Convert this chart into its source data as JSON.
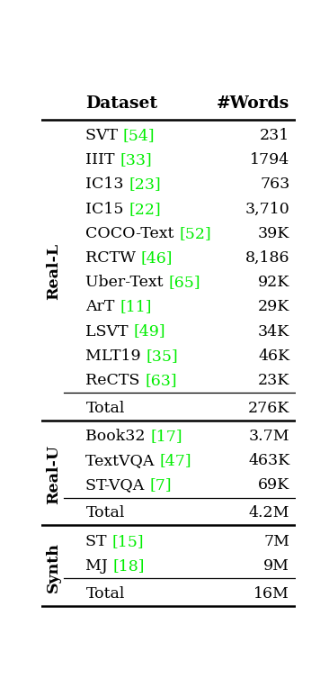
{
  "title_col1": "Dataset",
  "title_col2": "#Words",
  "sections": [
    {
      "label": "Real-L",
      "rows": [
        {
          "name": "SVT",
          "ref": "54",
          "value": "231"
        },
        {
          "name": "IIIT",
          "ref": "33",
          "value": "1794"
        },
        {
          "name": "IC13",
          "ref": "23",
          "value": "763"
        },
        {
          "name": "IC15",
          "ref": "22",
          "value": "3,710"
        },
        {
          "name": "COCO-Text",
          "ref": "52",
          "value": "39K"
        },
        {
          "name": "RCTW",
          "ref": "46",
          "value": "8,186"
        },
        {
          "name": "Uber-Text",
          "ref": "65",
          "value": "92K"
        },
        {
          "name": "ArT",
          "ref": "11",
          "value": "29K"
        },
        {
          "name": "LSVT",
          "ref": "49",
          "value": "34K"
        },
        {
          "name": "MLT19",
          "ref": "35",
          "value": "46K"
        },
        {
          "name": "ReCTS",
          "ref": "63",
          "value": "23K"
        }
      ],
      "total": "276K"
    },
    {
      "label": "Real-U",
      "rows": [
        {
          "name": "Book32",
          "ref": "17",
          "value": "3.7M"
        },
        {
          "name": "TextVQA",
          "ref": "47",
          "value": "463K"
        },
        {
          "name": "ST-VQA",
          "ref": "7",
          "value": "69K"
        }
      ],
      "total": "4.2M"
    },
    {
      "label": "Synth",
      "rows": [
        {
          "name": "ST",
          "ref": "15",
          "value": "7M"
        },
        {
          "name": "MJ",
          "ref": "18",
          "value": "9M"
        }
      ],
      "total": "16M"
    }
  ],
  "text_color": "#000000",
  "ref_color": "#00ee00",
  "bg_color": "#ffffff",
  "font_size": 12.5,
  "header_font_size": 13.5,
  "label_font_size": 12.5
}
